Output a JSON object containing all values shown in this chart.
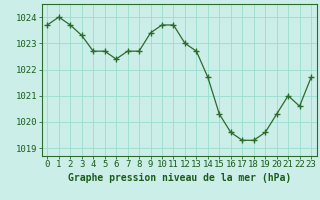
{
  "hours": [
    0,
    1,
    2,
    3,
    4,
    5,
    6,
    7,
    8,
    9,
    10,
    11,
    12,
    13,
    14,
    15,
    16,
    17,
    18,
    19,
    20,
    21,
    22,
    23
  ],
  "pressure": [
    1023.7,
    1024.0,
    1023.7,
    1023.3,
    1022.7,
    1022.7,
    1022.4,
    1022.7,
    1022.7,
    1023.4,
    1023.7,
    1023.7,
    1023.0,
    1022.7,
    1021.7,
    1020.3,
    1019.6,
    1019.3,
    1019.3,
    1019.6,
    1020.3,
    1021.0,
    1020.6,
    1021.7
  ],
  "line_color": "#2d6a2d",
  "marker": "+",
  "bg_color": "#cceee8",
  "grid_color": "#99ddcc",
  "ylabel_ticks": [
    1019,
    1020,
    1021,
    1022,
    1023,
    1024
  ],
  "ylim": [
    1018.7,
    1024.5
  ],
  "xlabel": "Graphe pression niveau de la mer (hPa)",
  "xlabel_fontsize": 7.0,
  "tick_fontsize": 6.5,
  "axis_label_color": "#1a5c1a",
  "bottom_area_color": "#2d6a2d",
  "xlim_left": -0.5,
  "xlim_right": 23.5
}
